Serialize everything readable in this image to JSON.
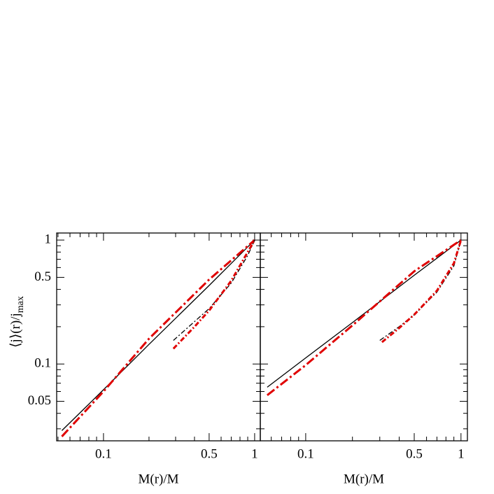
{
  "chart_data": [
    {
      "type": "line",
      "xlabel": "M(r)/M",
      "ylabel": {
        "text": "⟨j⟩(r)/j",
        "subscript": "max"
      },
      "log_x": true,
      "log_y": true,
      "xlim": [
        0.049,
        1.09
      ],
      "ylim": [
        0.024,
        1.14
      ],
      "xticks": [
        0.1,
        0.5,
        1
      ],
      "xminor": [
        0.05,
        0.06,
        0.07,
        0.08,
        0.09,
        0.2,
        0.3,
        0.4,
        0.6,
        0.7,
        0.8,
        0.9
      ],
      "yticks": [
        1,
        0.5,
        0.1,
        0.05
      ],
      "yminor": [
        0.03,
        0.04,
        0.06,
        0.07,
        0.08,
        0.09,
        0.2,
        0.3,
        0.4,
        0.6,
        0.7,
        0.8,
        0.9
      ],
      "series": [
        {
          "color": "#000000",
          "dash": "solid",
          "x": [
            0.053,
            0.1,
            0.2,
            0.5,
            1
          ],
          "values": [
            0.029,
            0.062,
            0.144,
            0.43,
            1
          ]
        },
        {
          "color": "#e00000",
          "dash": "dashed",
          "x": [
            0.053,
            0.1,
            0.2,
            0.5,
            1
          ],
          "values": [
            0.026,
            0.06,
            0.16,
            0.48,
            1
          ]
        },
        {
          "color": "#000000",
          "dash": "dash-dot",
          "x": [
            0.29,
            0.4,
            0.5,
            0.7,
            0.9,
            1
          ],
          "values": [
            0.155,
            0.22,
            0.28,
            0.45,
            0.75,
            1
          ]
        },
        {
          "color": "#e00000",
          "dash": "dash-dot",
          "x": [
            0.29,
            0.4,
            0.5,
            0.7,
            0.9,
            1
          ],
          "values": [
            0.133,
            0.2,
            0.27,
            0.47,
            0.8,
            1
          ]
        }
      ]
    },
    {
      "type": "line",
      "xlabel": "M(r)/M",
      "log_x": true,
      "log_y": true,
      "xlim": [
        0.051,
        1.1
      ],
      "ylim": [
        0.024,
        1.14
      ],
      "xticks": [
        0.1,
        0.5,
        1
      ],
      "xminor": [
        0.06,
        0.07,
        0.08,
        0.09,
        0.2,
        0.3,
        0.4,
        0.6,
        0.7,
        0.8,
        0.9
      ],
      "ytick_marks": [
        1,
        0.5,
        0.1,
        0.05
      ],
      "yminor": [
        0.03,
        0.04,
        0.06,
        0.07,
        0.08,
        0.09,
        0.2,
        0.3,
        0.4,
        0.6,
        0.7,
        0.8,
        0.9
      ],
      "series": [
        {
          "color": "#000000",
          "dash": "solid",
          "x": [
            0.0565,
            0.1,
            0.2,
            0.5,
            1
          ],
          "values": [
            0.065,
            0.112,
            0.216,
            0.52,
            1
          ]
        },
        {
          "color": "#e00000",
          "dash": "dashed",
          "x": [
            0.0565,
            0.1,
            0.2,
            0.5,
            1
          ],
          "values": [
            0.056,
            0.098,
            0.205,
            0.56,
            1
          ]
        },
        {
          "color": "#000000",
          "dash": "dash-dot",
          "x": [
            0.3,
            0.4,
            0.5,
            0.7,
            0.9,
            1
          ],
          "values": [
            0.155,
            0.2,
            0.25,
            0.38,
            0.62,
            1
          ]
        },
        {
          "color": "#e00000",
          "dash": "dash-dot",
          "x": [
            0.31,
            0.4,
            0.5,
            0.7,
            0.9,
            1
          ],
          "values": [
            0.15,
            0.195,
            0.25,
            0.39,
            0.65,
            1
          ]
        }
      ]
    }
  ]
}
